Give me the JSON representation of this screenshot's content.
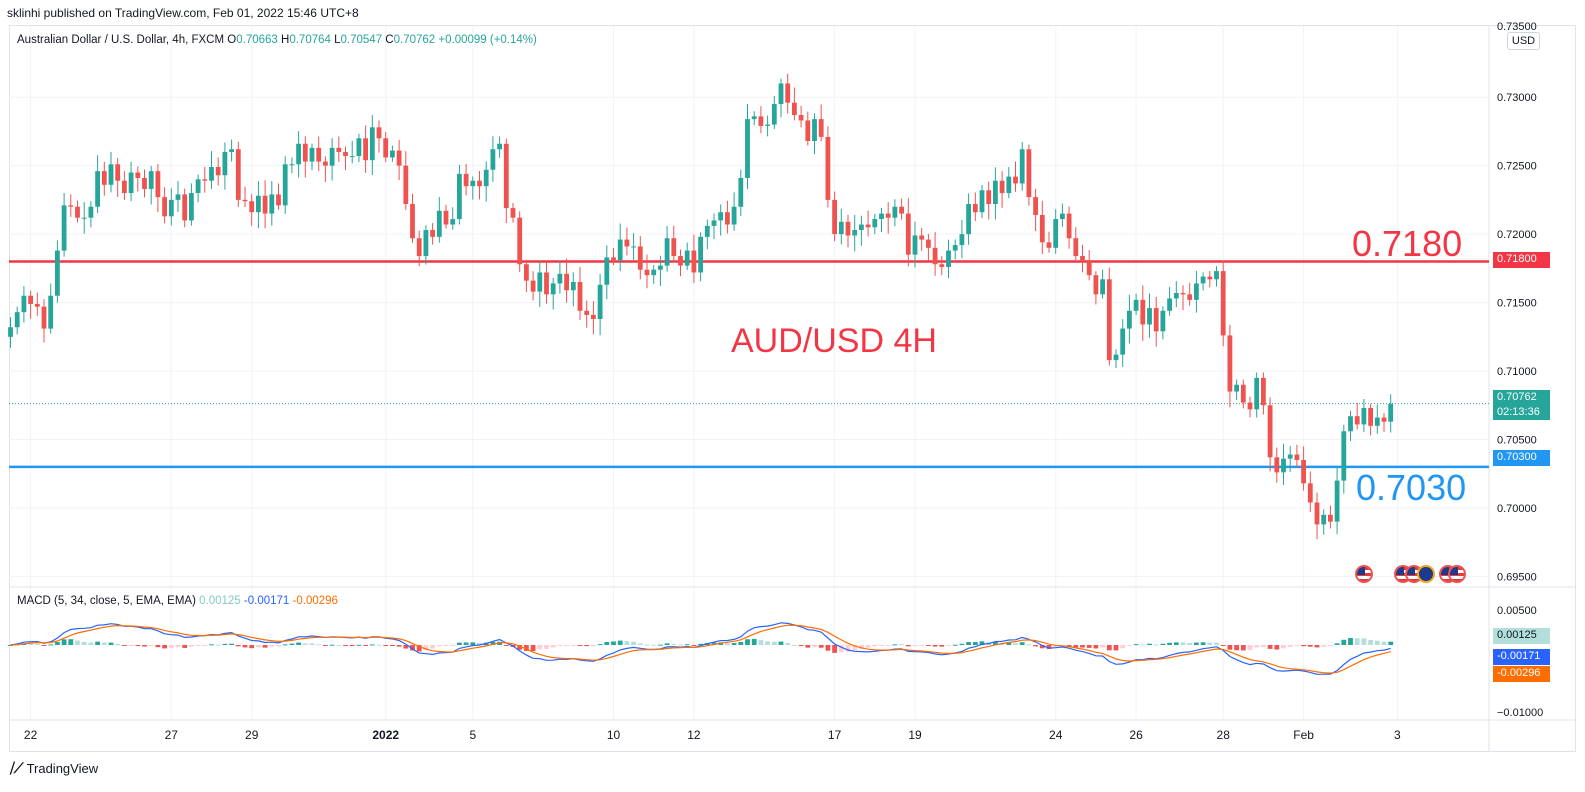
{
  "publisher_line": "sklinhi published on TradingView.com, Feb 01, 2022 15:46 UTC+8",
  "legend": {
    "symbol": "Australian Dollar / U.S. Dollar, 4h, FXCM",
    "o_label": "O",
    "o": "0.70663",
    "h_label": "H",
    "h": "0.70764",
    "l_label": "L",
    "l": "0.70547",
    "c_label": "C",
    "c": "0.70762",
    "change": "+0.00099 (+0.14%)"
  },
  "currency_button": "USD",
  "annotations": {
    "resistance_text": "0.7180",
    "support_text": "0.7030",
    "title_text": "AUD/USD 4H"
  },
  "price_tags": {
    "resistance": "0.71800",
    "last": "0.70762",
    "countdown": "02:13:36",
    "support": "0.70300"
  },
  "macd": {
    "label": "MACD (5, 34, close, 5, EMA, EMA)",
    "hist": "0.00125",
    "macd": "-0.00171",
    "signal": "-0.00296",
    "tag_hist": "0.00125",
    "tag_macd": "-0.00171",
    "tag_signal": "-0.00296"
  },
  "footer": {
    "brand": "TradingView"
  },
  "colors": {
    "up": "#26a69a",
    "down": "#ef5350",
    "resistance": "#f23645",
    "support": "#2196f3",
    "macd_line": "#2962ff",
    "signal_line": "#ff6d00",
    "hist_pos": "#26a69a",
    "hist_pos_light": "#b2dfdb",
    "hist_neg": "#ef5350",
    "hist_neg_light": "#ffcdd2"
  },
  "chart_data": {
    "type": "candlestick",
    "symbol": "AUD/USD",
    "timeframe": "4h",
    "price_axis": {
      "ticks": [
        "0.73000",
        "0.72500",
        "0.72000",
        "0.71500",
        "0.71000",
        "0.70500",
        "0.70000",
        "0.69500"
      ],
      "top_partial_tick": "0.73500",
      "ylim": [
        0.6943,
        0.7352
      ]
    },
    "time_axis": {
      "ticks": [
        {
          "label": "22",
          "bar": 3
        },
        {
          "label": "27",
          "bar": 24
        },
        {
          "label": "29",
          "bar": 36
        },
        {
          "label": "2022",
          "bar": 56
        },
        {
          "label": "5",
          "bar": 69
        },
        {
          "label": "10",
          "bar": 90
        },
        {
          "label": "12",
          "bar": 102
        },
        {
          "label": "17",
          "bar": 123
        },
        {
          "label": "19",
          "bar": 135
        },
        {
          "label": "24",
          "bar": 156
        },
        {
          "label": "26",
          "bar": 168
        },
        {
          "label": "28",
          "bar": 181
        },
        {
          "label": "Feb",
          "bar": 193
        },
        {
          "label": "3",
          "bar": 207
        }
      ]
    },
    "horizontal_lines": [
      {
        "name": "resistance",
        "value": 0.718
      },
      {
        "name": "support",
        "value": 0.703
      },
      {
        "name": "last_price",
        "value": 0.70762
      }
    ],
    "closes": [
      0.7132,
      0.7143,
      0.7155,
      0.7149,
      0.7147,
      0.7131,
      0.7155,
      0.7188,
      0.7221,
      0.722,
      0.7212,
      0.7212,
      0.722,
      0.7246,
      0.7236,
      0.7251,
      0.7239,
      0.723,
      0.7245,
      0.7241,
      0.7233,
      0.7246,
      0.7227,
      0.7213,
      0.7225,
      0.7229,
      0.721,
      0.723,
      0.724,
      0.7239,
      0.7249,
      0.7243,
      0.726,
      0.7262,
      0.7225,
      0.7224,
      0.7216,
      0.7228,
      0.7215,
      0.7229,
      0.7221,
      0.7251,
      0.7251,
      0.7266,
      0.7253,
      0.7263,
      0.7253,
      0.725,
      0.7263,
      0.726,
      0.7257,
      0.7257,
      0.727,
      0.7254,
      0.7278,
      0.727,
      0.7256,
      0.7261,
      0.725,
      0.7222,
      0.7197,
      0.7184,
      0.7203,
      0.7198,
      0.7217,
      0.7207,
      0.7211,
      0.7244,
      0.7235,
      0.7239,
      0.7235,
      0.7247,
      0.7262,
      0.7266,
      0.7219,
      0.7212,
      0.7178,
      0.7166,
      0.7158,
      0.7172,
      0.7156,
      0.7164,
      0.7171,
      0.7159,
      0.7165,
      0.7144,
      0.7141,
      0.7138,
      0.7163,
      0.7183,
      0.7181,
      0.7196,
      0.7191,
      0.7191,
      0.7174,
      0.717,
      0.7174,
      0.7177,
      0.7197,
      0.7184,
      0.7177,
      0.7188,
      0.7172,
      0.7198,
      0.7206,
      0.721,
      0.7216,
      0.7207,
      0.722,
      0.7241,
      0.7284,
      0.7286,
      0.7279,
      0.728,
      0.7295,
      0.731,
      0.7296,
      0.7287,
      0.7283,
      0.7268,
      0.7284,
      0.7271,
      0.7225,
      0.72,
      0.7209,
      0.7199,
      0.7203,
      0.7207,
      0.7205,
      0.7211,
      0.7215,
      0.7212,
      0.722,
      0.7215,
      0.7185,
      0.7199,
      0.7196,
      0.719,
      0.7178,
      0.7176,
      0.7188,
      0.7192,
      0.72,
      0.7222,
      0.7216,
      0.7232,
      0.7222,
      0.7239,
      0.723,
      0.7242,
      0.7237,
      0.7262,
      0.7227,
      0.7214,
      0.7194,
      0.719,
      0.7211,
      0.7215,
      0.7197,
      0.7184,
      0.7181,
      0.717,
      0.7156,
      0.7167,
      0.7108,
      0.7112,
      0.7131,
      0.7144,
      0.7152,
      0.7134,
      0.7146,
      0.7129,
      0.7144,
      0.7153,
      0.7157,
      0.7156,
      0.7152,
      0.7164,
      0.7169,
      0.7167,
      0.7173,
      0.7126,
      0.7085,
      0.709,
      0.7077,
      0.7072,
      0.7095,
      0.7075,
      0.7037,
      0.7026,
      0.7036,
      0.7039,
      0.7035,
      0.7018,
      0.7004,
      0.6988,
      0.6995,
      0.699,
      0.702,
      0.7056,
      0.7067,
      0.7061,
      0.7073,
      0.706,
      0.7066,
      0.7063,
      0.7076
    ]
  }
}
